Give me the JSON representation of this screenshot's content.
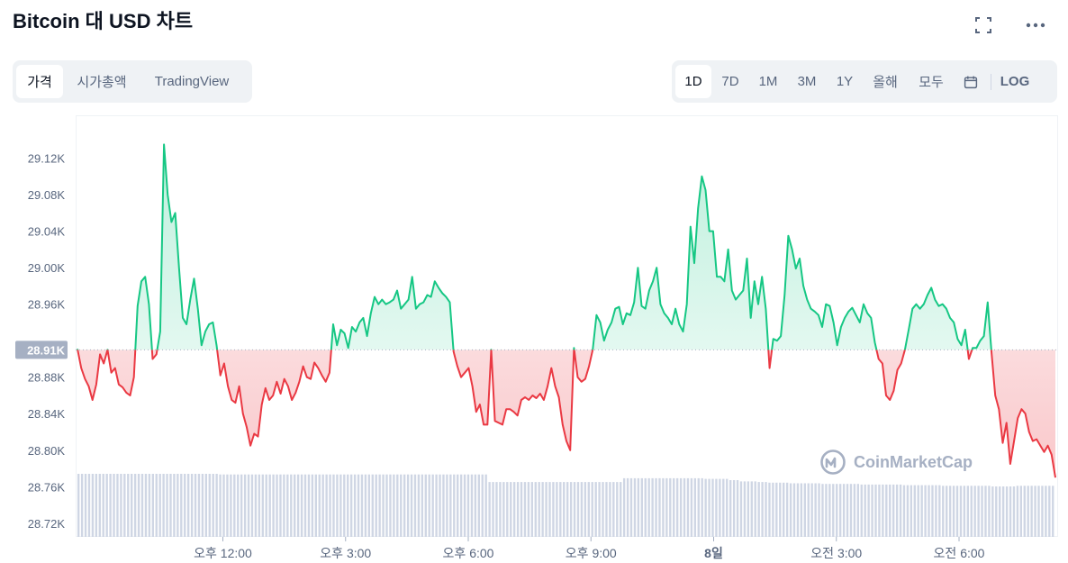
{
  "header": {
    "title": "Bitcoin 대 USD 차트"
  },
  "icons": {
    "fullscreen": "fullscreen-icon",
    "more": "more-icon",
    "calendar": "calendar-icon",
    "logo": "coinmarketcap-logo-icon"
  },
  "left_tabs": [
    {
      "label": "가격",
      "active": true
    },
    {
      "label": "시가총액",
      "active": false
    },
    {
      "label": "TradingView",
      "active": false
    }
  ],
  "range_tabs": [
    {
      "label": "1D",
      "active": true
    },
    {
      "label": "7D",
      "active": false
    },
    {
      "label": "1M",
      "active": false
    },
    {
      "label": "3M",
      "active": false
    },
    {
      "label": "1Y",
      "active": false
    },
    {
      "label": "올해",
      "active": false
    },
    {
      "label": "모두",
      "active": false
    }
  ],
  "log_label": "LOG",
  "watermark": "CoinMarketCap",
  "colors": {
    "up": "#16c784",
    "down": "#ea3943",
    "volume": "#cfd6e4",
    "badge": "#a6b0c3"
  },
  "chart_data": {
    "type": "line",
    "title": "",
    "xlabel": "",
    "ylabel": "",
    "ylim": [
      28705,
      29165
    ],
    "baseline": 28910,
    "baseline_label": "28.91K",
    "yticks": [
      {
        "value": 29120,
        "label": "29.12K"
      },
      {
        "value": 29080,
        "label": "29.08K"
      },
      {
        "value": 29040,
        "label": "29.04K"
      },
      {
        "value": 29000,
        "label": "29.00K"
      },
      {
        "value": 28960,
        "label": "28.96K"
      },
      {
        "value": 28880,
        "label": "28.88K"
      },
      {
        "value": 28840,
        "label": "28.84K"
      },
      {
        "value": 28800,
        "label": "28.80K"
      },
      {
        "value": 28760,
        "label": "28.76K"
      },
      {
        "value": 28720,
        "label": "28.72K"
      }
    ],
    "xticks": [
      {
        "pos": 0.15,
        "label": "오후 12:00"
      },
      {
        "pos": 0.275,
        "label": "오후 3:00"
      },
      {
        "pos": 0.4,
        "label": "오후 6:00"
      },
      {
        "pos": 0.525,
        "label": "오후 9:00"
      },
      {
        "pos": 0.65,
        "label": "8일"
      },
      {
        "pos": 0.775,
        "label": "오전 3:00"
      },
      {
        "pos": 0.9,
        "label": "오전 6:00"
      }
    ],
    "series": [
      {
        "values": [
          28911,
          28890,
          28878,
          28870,
          28855,
          28872,
          28905,
          28895,
          28910,
          28885,
          28890,
          28872,
          28869,
          28863,
          28860,
          28880,
          28958,
          28985,
          28990,
          28960,
          28900,
          28905,
          28930,
          29135,
          29080,
          29050,
          29060,
          29000,
          28945,
          28938,
          28965,
          28988,
          28955,
          28915,
          28930,
          28938,
          28940,
          28915,
          28882,
          28895,
          28870,
          28855,
          28852,
          28870,
          28840,
          28825,
          28805,
          28818,
          28815,
          28850,
          28868,
          28855,
          28860,
          28875,
          28862,
          28878,
          28870,
          28855,
          28863,
          28875,
          28892,
          28880,
          28878,
          28896,
          28890,
          28882,
          28875,
          28885,
          28938,
          28915,
          28932,
          28928,
          28912,
          28935,
          28930,
          28940,
          28945,
          28925,
          28950,
          28968,
          28960,
          28965,
          28960,
          28962,
          28965,
          28975,
          28955,
          28960,
          28965,
          28990,
          28955,
          28960,
          28962,
          28970,
          28968,
          28985,
          28978,
          28972,
          28968,
          28962,
          28908,
          28892,
          28880,
          28885,
          28890,
          28870,
          28842,
          28850,
          28828,
          28828,
          28910,
          28832,
          28830,
          28828,
          28845,
          28845,
          28842,
          28838,
          28855,
          28858,
          28855,
          28860,
          28857,
          28862,
          28855,
          28870,
          28890,
          28870,
          28858,
          28828,
          28810,
          28800,
          28912,
          28880,
          28875,
          28878,
          28892,
          28910,
          28948,
          28940,
          28920,
          28932,
          28940,
          28955,
          28957,
          28938,
          28950,
          28948,
          28962,
          29000,
          28958,
          28955,
          28975,
          28985,
          29000,
          28960,
          28950,
          28945,
          28938,
          28955,
          28938,
          28930,
          28960,
          29045,
          29005,
          29065,
          29100,
          29085,
          29040,
          29040,
          28990,
          28990,
          28985,
          29020,
          28975,
          28965,
          28970,
          28975,
          29010,
          28945,
          28985,
          28960,
          28990,
          28955,
          28890,
          28922,
          28920,
          28925,
          28970,
          29035,
          29020,
          28999,
          29010,
          28980,
          28965,
          28955,
          28952,
          28948,
          28935,
          28960,
          28958,
          28940,
          28915,
          28935,
          28945,
          28952,
          28956,
          28948,
          28940,
          28960,
          28950,
          28945,
          28918,
          28900,
          28895,
          28860,
          28855,
          28865,
          28888,
          28895,
          28910,
          28932,
          28955,
          28960,
          28955,
          28960,
          28970,
          28978,
          28965,
          28958,
          28960,
          28955,
          28945,
          28940,
          28922,
          28915,
          28932,
          28900,
          28912,
          28912,
          28920,
          28925,
          28962,
          28908,
          28860,
          28845,
          28808,
          28830,
          28785,
          28810,
          28835,
          28845,
          28840,
          28820,
          28810,
          28812,
          28805,
          28798,
          28805,
          28795,
          28770
        ]
      }
    ],
    "volume_values": [
      1,
      1,
      1,
      1,
      1,
      1,
      1,
      1,
      1,
      1,
      1,
      1,
      1,
      1,
      1,
      1,
      1,
      1,
      1,
      1,
      1,
      1,
      1,
      1,
      1,
      1,
      1,
      1,
      1,
      1,
      1,
      1,
      1,
      1,
      1,
      1,
      1,
      1,
      1,
      1,
      0.99,
      0.99,
      0.99,
      0.99,
      0.99,
      0.99,
      0.99,
      0.99,
      0.99,
      0.99,
      0.99,
      0.99,
      0.99,
      0.99,
      0.99,
      0.99,
      0.99,
      0.99,
      0.99,
      0.99,
      0.99,
      0.99,
      0.99,
      0.99,
      0.99,
      0.99,
      0.99,
      0.99,
      0.99,
      0.99,
      0.99,
      0.99,
      0.99,
      0.99,
      0.99,
      0.99,
      0.99,
      0.99,
      0.99,
      0.99,
      0.99,
      0.99,
      0.99,
      0.99,
      0.99,
      0.99,
      0.99,
      0.99,
      0.99,
      0.99,
      0.99,
      0.99,
      0.99,
      0.99,
      0.99,
      0.99,
      0.99,
      0.99,
      0.99,
      0.99,
      0.99,
      0.99,
      0.99,
      0.99,
      0.99,
      0.99,
      0.99,
      0.99,
      0.99,
      0.99,
      0.99,
      0.99,
      0.99,
      0.99,
      0.99,
      0.99,
      0.87,
      0.87,
      0.87,
      0.87,
      0.87,
      0.87,
      0.87,
      0.87,
      0.87,
      0.87,
      0.87,
      0.87,
      0.87,
      0.87,
      0.87,
      0.87,
      0.87,
      0.87,
      0.87,
      0.87,
      0.87,
      0.87,
      0.87,
      0.87,
      0.87,
      0.87,
      0.87,
      0.87,
      0.87,
      0.87,
      0.87,
      0.87,
      0.87,
      0.87,
      0.87,
      0.87,
      0.87,
      0.87,
      0.93,
      0.93,
      0.93,
      0.93,
      0.93,
      0.93,
      0.93,
      0.93,
      0.93,
      0.93,
      0.93,
      0.93,
      0.93,
      0.93,
      0.93,
      0.93,
      0.93,
      0.93,
      0.93,
      0.93,
      0.93,
      0.93,
      0.93,
      0.92,
      0.92,
      0.92,
      0.92,
      0.92,
      0.92,
      0.92,
      0.9,
      0.9,
      0.9,
      0.88,
      0.88,
      0.88,
      0.88,
      0.88,
      0.87,
      0.87,
      0.87,
      0.86,
      0.86,
      0.86,
      0.86,
      0.86,
      0.86,
      0.85,
      0.85,
      0.85,
      0.85,
      0.85,
      0.85,
      0.85,
      0.85,
      0.85,
      0.84,
      0.84,
      0.84,
      0.84,
      0.84,
      0.84,
      0.84,
      0.84,
      0.84,
      0.84,
      0.84,
      0.83,
      0.83,
      0.83,
      0.83,
      0.83,
      0.83,
      0.83,
      0.83,
      0.83,
      0.83,
      0.83,
      0.83,
      0.82,
      0.82,
      0.82,
      0.82,
      0.82,
      0.82,
      0.82,
      0.82,
      0.82,
      0.82,
      0.82,
      0.81,
      0.81,
      0.81,
      0.81,
      0.81,
      0.81,
      0.81,
      0.81,
      0.81,
      0.81,
      0.81,
      0.81,
      0.81,
      0.81,
      0.8,
      0.8,
      0.8,
      0.8,
      0.8,
      0.8,
      0.8,
      0.81,
      0.81,
      0.81,
      0.81,
      0.81,
      0.81,
      0.81,
      0.81,
      0.81,
      0.81,
      0.81
    ]
  }
}
